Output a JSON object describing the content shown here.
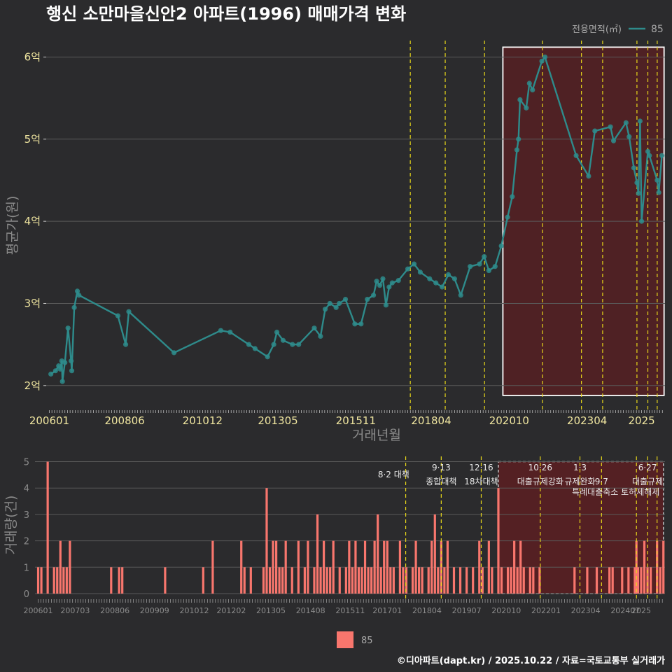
{
  "title": "행신 소만마을신안2 아파트(1996) 매매가격 변화",
  "credit": "©디아파트(dapt.kr) / 2025.10.22 / 자료=국토교통부 실거래가",
  "legend": {
    "area_title": "전용면적(㎡)",
    "series_label": "85",
    "bar_label": "85"
  },
  "colors": {
    "background": "#2b2b2d",
    "line": "#2e8b8b",
    "bar": "#f8766d",
    "highlight_fill": "#5c1f22",
    "policy_line": "#e8d81a",
    "grid": "#5a5a5a"
  },
  "chart_data": [
    {
      "type": "line",
      "title": "행신 소만마을신안2 아파트(1996) 매매가격 변화",
      "xlabel": "거래년월",
      "ylabel": "평균가(원)",
      "x_ticks": [
        "200601",
        "200806",
        "201012",
        "201305",
        "201511",
        "201804",
        "202010",
        "202304",
        "2025"
      ],
      "y_ticks": [
        "2억",
        "3억",
        "4억",
        "5억",
        "6억"
      ],
      "y_tick_values": [
        2,
        3,
        4,
        5,
        6
      ],
      "ylim": [
        1.7,
        6.2
      ],
      "xlim": [
        2005.9,
        2025.75
      ],
      "unit": "억",
      "highlight_range": [
        2020.5,
        2025.7
      ],
      "policy_dates": [
        2017.58,
        2018.7,
        2019.96,
        2021.82,
        2023.07,
        2023.75,
        2024.85,
        2025.2,
        2025.5
      ],
      "series": [
        {
          "name": "85",
          "points": [
            [
              2006.05,
              2.14
            ],
            [
              2006.2,
              2.18
            ],
            [
              2006.3,
              2.24
            ],
            [
              2006.35,
              2.2
            ],
            [
              2006.4,
              2.3
            ],
            [
              2006.42,
              2.05
            ],
            [
              2006.5,
              2.28
            ],
            [
              2006.6,
              2.7
            ],
            [
              2006.7,
              2.3
            ],
            [
              2006.72,
              2.18
            ],
            [
              2006.8,
              2.95
            ],
            [
              2006.9,
              3.15
            ],
            [
              2006.95,
              3.1
            ],
            [
              2008.2,
              2.85
            ],
            [
              2008.45,
              2.5
            ],
            [
              2008.55,
              2.9
            ],
            [
              2010.0,
              2.4
            ],
            [
              2011.5,
              2.67
            ],
            [
              2011.8,
              2.65
            ],
            [
              2012.4,
              2.5
            ],
            [
              2012.6,
              2.45
            ],
            [
              2013.0,
              2.35
            ],
            [
              2013.2,
              2.5
            ],
            [
              2013.3,
              2.65
            ],
            [
              2013.5,
              2.55
            ],
            [
              2013.8,
              2.5
            ],
            [
              2014.0,
              2.5
            ],
            [
              2014.5,
              2.7
            ],
            [
              2014.7,
              2.6
            ],
            [
              2014.85,
              2.93
            ],
            [
              2015.0,
              3.0
            ],
            [
              2015.2,
              2.95
            ],
            [
              2015.3,
              3.0
            ],
            [
              2015.5,
              3.05
            ],
            [
              2015.8,
              2.75
            ],
            [
              2016.0,
              2.75
            ],
            [
              2016.2,
              3.05
            ],
            [
              2016.4,
              3.1
            ],
            [
              2016.5,
              3.27
            ],
            [
              2016.6,
              3.22
            ],
            [
              2016.7,
              3.3
            ],
            [
              2016.8,
              2.98
            ],
            [
              2016.9,
              3.2
            ],
            [
              2017.0,
              3.25
            ],
            [
              2017.2,
              3.28
            ],
            [
              2017.5,
              3.42
            ],
            [
              2017.7,
              3.48
            ],
            [
              2017.9,
              3.38
            ],
            [
              2018.2,
              3.3
            ],
            [
              2018.4,
              3.25
            ],
            [
              2018.6,
              3.2
            ],
            [
              2018.8,
              3.35
            ],
            [
              2019.0,
              3.3
            ],
            [
              2019.2,
              3.1
            ],
            [
              2019.5,
              3.45
            ],
            [
              2019.8,
              3.48
            ],
            [
              2019.95,
              3.57
            ],
            [
              2020.1,
              3.4
            ],
            [
              2020.3,
              3.45
            ],
            [
              2020.5,
              3.7
            ],
            [
              2020.7,
              4.05
            ],
            [
              2020.85,
              4.3
            ],
            [
              2021.0,
              4.87
            ],
            [
              2021.05,
              5.0
            ],
            [
              2021.1,
              5.48
            ],
            [
              2021.3,
              5.38
            ],
            [
              2021.4,
              5.68
            ],
            [
              2021.5,
              5.6
            ],
            [
              2021.8,
              5.95
            ],
            [
              2021.9,
              6.0
            ],
            [
              2022.9,
              4.8
            ],
            [
              2023.3,
              4.55
            ],
            [
              2023.5,
              5.1
            ],
            [
              2024.0,
              5.15
            ],
            [
              2024.1,
              4.98
            ],
            [
              2024.5,
              5.2
            ],
            [
              2024.6,
              5.03
            ],
            [
              2024.75,
              4.65
            ],
            [
              2024.85,
              4.47
            ],
            [
              2024.9,
              4.34
            ],
            [
              2024.95,
              5.22
            ],
            [
              2025.0,
              4.0
            ],
            [
              2025.2,
              4.85
            ],
            [
              2025.25,
              4.8
            ],
            [
              2025.5,
              4.5
            ],
            [
              2025.55,
              4.35
            ],
            [
              2025.65,
              4.8
            ]
          ]
        }
      ],
      "highlight_box": [
        2020.55,
        1.88,
        2025.72,
        6.12
      ]
    },
    {
      "type": "bar",
      "ylabel": "거래량(건)",
      "x_ticks": [
        "200601",
        "200703",
        "200806",
        "200909",
        "201012",
        "201202",
        "201305",
        "201408",
        "201511",
        "201701",
        "201804",
        "201907",
        "202010",
        "202201",
        "202304",
        "202407",
        "2025"
      ],
      "y_ticks": [
        "0",
        "1",
        "2",
        "3",
        "4",
        "5"
      ],
      "ylim": [
        0,
        5.2
      ],
      "xlim": [
        2005.9,
        2025.75
      ],
      "highlight_range": [
        2020.5,
        2025.7
      ],
      "policy_dates": [
        2017.58,
        2018.7,
        2019.96,
        2021.82,
        2023.07,
        2023.75,
        2024.85,
        2025.2,
        2025.5
      ],
      "annotations": [
        {
          "text": "8·2 대책",
          "x": 2017.2,
          "row": 1
        },
        {
          "text": "9·13",
          "x": 2018.7,
          "row": 0
        },
        {
          "text": "종합대책",
          "x": 2018.7,
          "row": 2
        },
        {
          "text": "12·16",
          "x": 2019.96,
          "row": 0
        },
        {
          "text": "18차대책",
          "x": 2019.96,
          "row": 2
        },
        {
          "text": "10·26",
          "x": 2021.82,
          "row": 0
        },
        {
          "text": "대출규제강화",
          "x": 2021.82,
          "row": 2
        },
        {
          "text": "1·3",
          "x": 2023.07,
          "row": 0
        },
        {
          "text": "규제완화",
          "x": 2023.07,
          "row": 2
        },
        {
          "text": "9·7",
          "x": 2023.75,
          "row": 2
        },
        {
          "text": "특례대출축소 토허제해제",
          "x": 2024.2,
          "row": 3
        },
        {
          "text": "6·27",
          "x": 2025.2,
          "row": 0
        },
        {
          "text": "대출규제",
          "x": 2025.2,
          "row": 2
        }
      ],
      "bars": [
        [
          2006.0,
          1
        ],
        [
          2006.1,
          1
        ],
        [
          2006.3,
          5
        ],
        [
          2006.5,
          1
        ],
        [
          2006.6,
          1
        ],
        [
          2006.7,
          2
        ],
        [
          2006.8,
          1
        ],
        [
          2006.9,
          1
        ],
        [
          2007.0,
          2
        ],
        [
          2008.3,
          1
        ],
        [
          2008.55,
          1
        ],
        [
          2008.65,
          1
        ],
        [
          2010.0,
          1
        ],
        [
          2011.2,
          1
        ],
        [
          2011.5,
          2
        ],
        [
          2012.4,
          2
        ],
        [
          2012.5,
          1
        ],
        [
          2012.7,
          1
        ],
        [
          2013.1,
          1
        ],
        [
          2013.2,
          4
        ],
        [
          2013.3,
          1
        ],
        [
          2013.4,
          2
        ],
        [
          2013.5,
          2
        ],
        [
          2013.6,
          1
        ],
        [
          2013.7,
          1
        ],
        [
          2013.8,
          2
        ],
        [
          2014.0,
          1
        ],
        [
          2014.2,
          2
        ],
        [
          2014.4,
          1
        ],
        [
          2014.5,
          2
        ],
        [
          2014.7,
          1
        ],
        [
          2014.8,
          3
        ],
        [
          2014.9,
          1
        ],
        [
          2015.0,
          2
        ],
        [
          2015.1,
          1
        ],
        [
          2015.2,
          1
        ],
        [
          2015.3,
          2
        ],
        [
          2015.5,
          1
        ],
        [
          2015.7,
          1
        ],
        [
          2015.8,
          2
        ],
        [
          2015.9,
          1
        ],
        [
          2016.0,
          2
        ],
        [
          2016.1,
          1
        ],
        [
          2016.2,
          1
        ],
        [
          2016.3,
          2
        ],
        [
          2016.4,
          1
        ],
        [
          2016.5,
          1
        ],
        [
          2016.6,
          2
        ],
        [
          2016.7,
          3
        ],
        [
          2016.8,
          1
        ],
        [
          2016.9,
          2
        ],
        [
          2017.0,
          2
        ],
        [
          2017.1,
          1
        ],
        [
          2017.2,
          1
        ],
        [
          2017.4,
          2
        ],
        [
          2017.5,
          1
        ],
        [
          2017.6,
          1
        ],
        [
          2017.8,
          1
        ],
        [
          2017.9,
          2
        ],
        [
          2018.0,
          1
        ],
        [
          2018.1,
          1
        ],
        [
          2018.3,
          1
        ],
        [
          2018.4,
          2
        ],
        [
          2018.5,
          3
        ],
        [
          2018.6,
          1
        ],
        [
          2018.7,
          2
        ],
        [
          2018.8,
          1
        ],
        [
          2018.9,
          2
        ],
        [
          2019.1,
          1
        ],
        [
          2019.3,
          1
        ],
        [
          2019.5,
          1
        ],
        [
          2019.7,
          1
        ],
        [
          2019.9,
          2
        ],
        [
          2020.0,
          1
        ],
        [
          2020.2,
          2
        ],
        [
          2020.3,
          1
        ],
        [
          2020.5,
          4
        ],
        [
          2020.6,
          1
        ],
        [
          2020.8,
          1
        ],
        [
          2020.9,
          1
        ],
        [
          2021.0,
          2
        ],
        [
          2021.1,
          1
        ],
        [
          2021.2,
          2
        ],
        [
          2021.3,
          1
        ],
        [
          2021.5,
          1
        ],
        [
          2021.6,
          1
        ],
        [
          2021.8,
          1
        ],
        [
          2022.9,
          1
        ],
        [
          2023.3,
          1
        ],
        [
          2023.6,
          1
        ],
        [
          2024.0,
          1
        ],
        [
          2024.1,
          1
        ],
        [
          2024.4,
          1
        ],
        [
          2024.6,
          1
        ],
        [
          2024.8,
          1
        ],
        [
          2024.85,
          2
        ],
        [
          2024.9,
          1
        ],
        [
          2025.0,
          1
        ],
        [
          2025.1,
          2
        ],
        [
          2025.2,
          1
        ],
        [
          2025.3,
          1
        ],
        [
          2025.5,
          2
        ],
        [
          2025.6,
          1
        ],
        [
          2025.7,
          2
        ]
      ]
    }
  ]
}
